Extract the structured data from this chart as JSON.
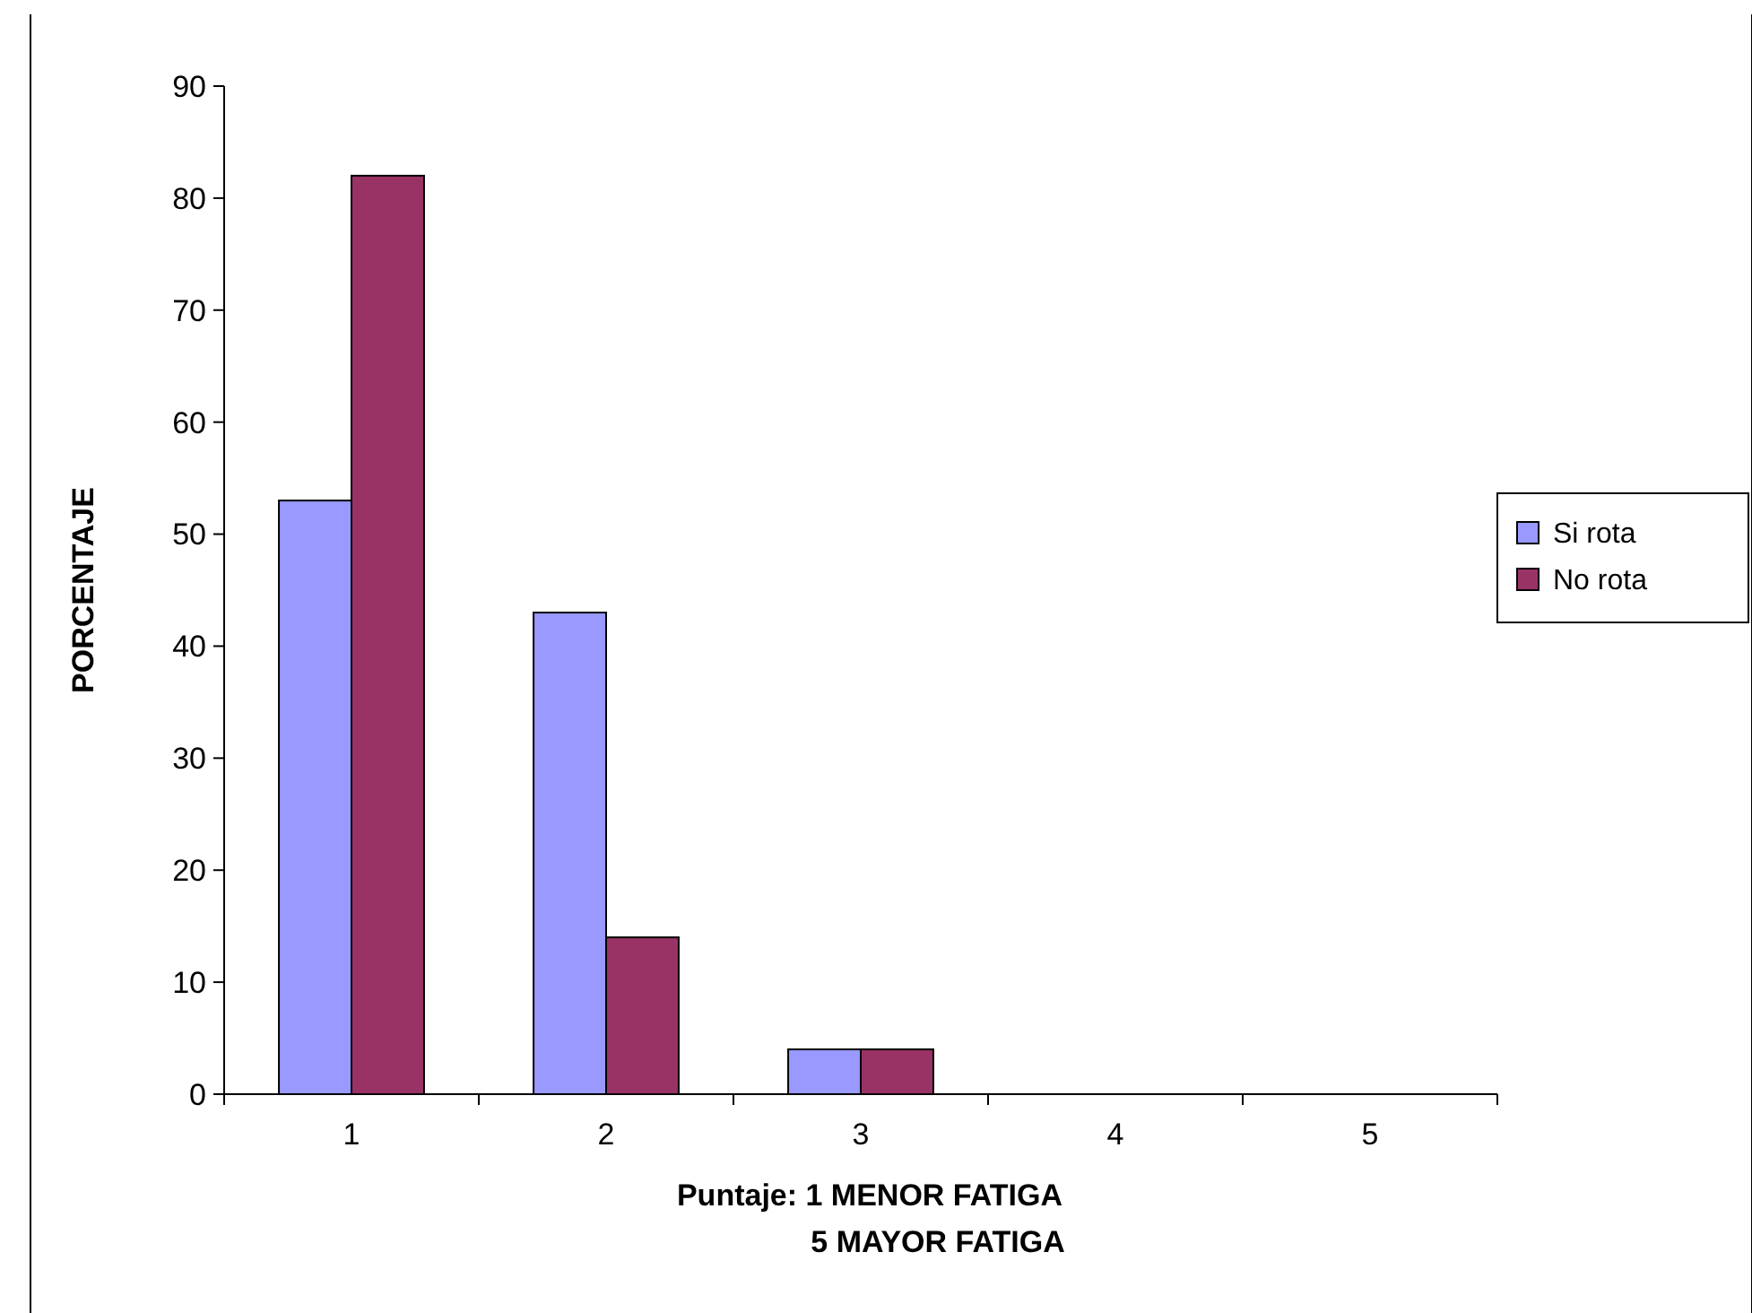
{
  "chart_data": {
    "type": "bar",
    "xlabel": "Puntaje: 1 MENOR FATIGA\n5 MAYOR FATIGA",
    "ylabel": "PORCENTAJE",
    "categories": [
      "1",
      "2",
      "3",
      "4",
      "5"
    ],
    "series": [
      {
        "name": "Si rota",
        "color": "#9999ff",
        "values": [
          53,
          43,
          4,
          0,
          0
        ]
      },
      {
        "name": "No rota",
        "color": "#993366",
        "values": [
          82,
          14,
          4,
          0,
          0
        ]
      }
    ],
    "ylim": [
      0,
      90
    ],
    "yticks": [
      0,
      10,
      20,
      30,
      40,
      50,
      60,
      70,
      80,
      90
    ],
    "grid": false,
    "legend": "right"
  }
}
